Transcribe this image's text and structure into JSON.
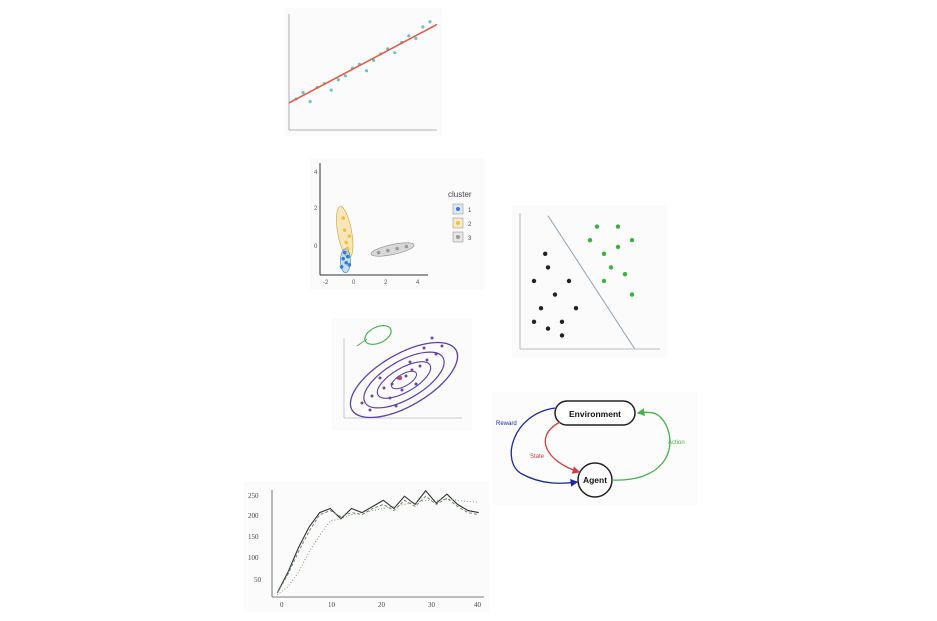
{
  "colors": {
    "regression_line": "#e05a4c",
    "regression_points": "#6cc4c0",
    "cluster_1": "#2f7fcf",
    "cluster_2": "#f0c040",
    "cluster_3": "#9a9a9a",
    "svm_class_a": "#222222",
    "svm_class_b": "#3cb043",
    "svm_boundary": "#8899aa",
    "ellipse_outer": "#5b3fa8",
    "ellipse_green": "#4caf50",
    "reward_arrow": "#1a2a9a",
    "state_arrow": "#d04040",
    "action_arrow": "#4caf50",
    "curve_solid": "#333333",
    "curve_dotted": "#7a8a6a"
  },
  "cluster_plot": {
    "legend_title": "cluster",
    "legend_items": [
      {
        "label": "1",
        "color": "#2f7fcf"
      },
      {
        "label": "2",
        "color": "#f0c040"
      },
      {
        "label": "3",
        "color": "#9a9a9a"
      }
    ],
    "y_ticks": [
      "4",
      "2",
      "0"
    ],
    "x_ticks": [
      "-2",
      "0",
      "2",
      "4"
    ]
  },
  "rl_diagram": {
    "environment_label": "Environment",
    "agent_label": "Agent",
    "reward_label": "Reward",
    "state_label": "State",
    "action_label": "Action"
  },
  "learning_curve": {
    "y_ticks": [
      "250",
      "200",
      "150",
      "100",
      "50"
    ],
    "x_ticks": [
      "0",
      "10",
      "20",
      "30",
      "40"
    ]
  },
  "chart_data": [
    {
      "type": "scatter",
      "title": "",
      "xlabel": "",
      "ylabel": "",
      "note": "scatter with fitted regression line",
      "series": [
        {
          "values": [
            [
              1,
              2.4
            ],
            [
              2,
              2.9
            ],
            [
              3,
              2.2
            ],
            [
              4,
              3.3
            ],
            [
              5,
              3.6
            ],
            [
              6,
              3.1
            ],
            [
              7,
              3.9
            ],
            [
              8,
              4.2
            ],
            [
              9,
              4.8
            ],
            [
              10,
              5.1
            ],
            [
              11,
              4.6
            ],
            [
              12,
              5.4
            ],
            [
              13,
              5.9
            ],
            [
              14,
              6.3
            ],
            [
              15,
              6.0
            ],
            [
              16,
              6.8
            ],
            [
              17,
              7.3
            ],
            [
              18,
              7.1
            ],
            [
              19,
              8.0
            ],
            [
              20,
              8.4
            ]
          ]
        }
      ],
      "fit": {
        "slope": 0.29,
        "intercept": 2.1
      }
    },
    {
      "type": "scatter",
      "title": "",
      "xlabel": "",
      "ylabel": "",
      "xlim": [
        -2,
        5
      ],
      "ylim": [
        -1,
        4.5
      ],
      "legend": "right",
      "series": [
        {
          "name": "1",
          "values": [
            [
              -0.6,
              -0.6
            ],
            [
              -0.5,
              -0.2
            ],
            [
              -0.4,
              0.1
            ],
            [
              -0.3,
              -0.4
            ],
            [
              -0.2,
              -0.1
            ],
            [
              -0.1,
              -0.5
            ]
          ]
        },
        {
          "name": "2",
          "values": [
            [
              -0.5,
              1.8
            ],
            [
              -0.4,
              1.2
            ],
            [
              -0.3,
              0.6
            ],
            [
              -0.2,
              0.3
            ],
            [
              -0.1,
              0.9
            ]
          ]
        },
        {
          "name": "3",
          "values": [
            [
              1.8,
              0.1
            ],
            [
              2.4,
              0.2
            ],
            [
              3.0,
              0.3
            ],
            [
              3.6,
              0.4
            ]
          ]
        }
      ]
    },
    {
      "type": "scatter",
      "title": "",
      "xlabel": "",
      "ylabel": "",
      "note": "two linearly separable classes with decision boundary",
      "series": [
        {
          "values": [
            [
              1,
              5
            ],
            [
              2,
              6
            ],
            [
              1.5,
              3
            ],
            [
              2.5,
              4
            ],
            [
              3,
              2
            ],
            [
              1,
              2
            ],
            [
              2,
              1.5
            ],
            [
              3.5,
              5
            ],
            [
              4,
              3
            ],
            [
              3,
              1
            ],
            [
              1.8,
              7
            ]
          ]
        },
        {
          "values": [
            [
              5,
              8
            ],
            [
              6,
              7
            ],
            [
              7,
              9
            ],
            [
              8,
              8
            ],
            [
              6.5,
              6
            ],
            [
              7.5,
              5.5
            ],
            [
              8,
              4
            ],
            [
              6,
              5
            ],
            [
              7,
              7.5
            ],
            [
              5.5,
              9
            ]
          ]
        }
      ]
    },
    {
      "type": "line",
      "title": "",
      "xlabel": "",
      "ylabel": "",
      "xlim": [
        0,
        40
      ],
      "ylim": [
        0,
        260
      ],
      "x": [
        1,
        3,
        5,
        7,
        9,
        11,
        13,
        15,
        17,
        19,
        21,
        23,
        25,
        27,
        29,
        31,
        33,
        35,
        37,
        39
      ],
      "series": [
        {
          "values": [
            10,
            60,
            120,
            170,
            205,
            215,
            190,
            215,
            205,
            220,
            235,
            215,
            245,
            225,
            258,
            228,
            250,
            225,
            210,
            205
          ]
        },
        {
          "values": [
            10,
            55,
            110,
            160,
            200,
            210,
            195,
            205,
            200,
            215,
            225,
            210,
            235,
            220,
            245,
            225,
            240,
            220,
            205,
            200
          ]
        },
        {
          "values": [
            5,
            25,
            60,
            110,
            150,
            185,
            190,
            200,
            205,
            210,
            215,
            220,
            225,
            230,
            235,
            235,
            238,
            235,
            232,
            230
          ]
        }
      ]
    }
  ]
}
